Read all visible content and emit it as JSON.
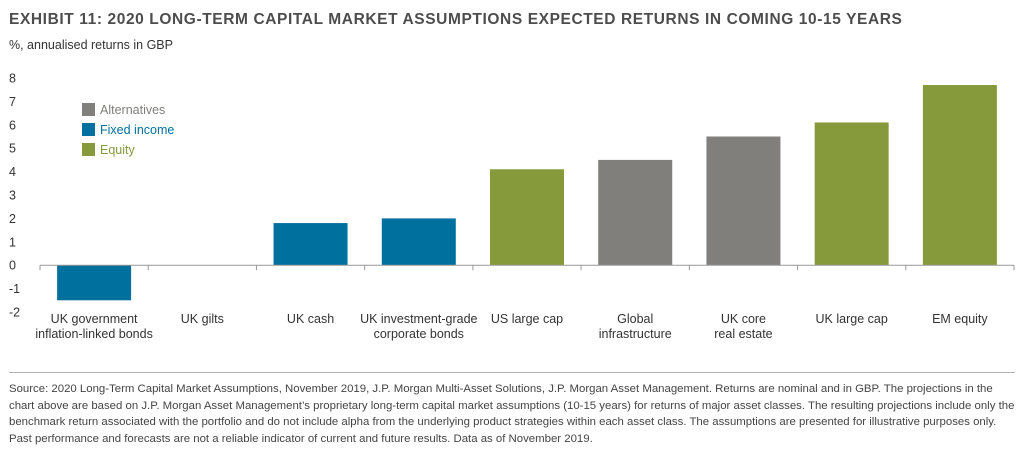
{
  "header": {
    "title": "EXHIBIT 11: 2020 LONG-TERM CAPITAL MARKET ASSUMPTIONS EXPECTED RETURNS IN COMING 10-15 YEARS",
    "subtitle": "%, annualised returns in GBP"
  },
  "colors": {
    "Alternatives": "#807f7b",
    "Fixed income": "#00709f",
    "Equity": "#869a3c",
    "axis": "#999999",
    "text": "#333333"
  },
  "chart_data": {
    "type": "bar",
    "title": "EXHIBIT 11: 2020 LONG-TERM CAPITAL MARKET ASSUMPTIONS EXPECTED RETURNS IN COMING 10-15 YEARS",
    "subtitle": "%, annualised returns in GBP",
    "xlabel": "",
    "ylabel": "",
    "ylim": [
      -2,
      8
    ],
    "yticks": [
      -2,
      -1,
      0,
      1,
      2,
      3,
      4,
      5,
      6,
      7,
      8
    ],
    "grid": false,
    "legend_position": "top-left",
    "legend": [
      "Alternatives",
      "Fixed income",
      "Equity"
    ],
    "categories": [
      [
        "UK government",
        "inflation-linked bonds"
      ],
      [
        "UK gilts"
      ],
      [
        "UK cash"
      ],
      [
        "UK investment-grade",
        "corporate bonds"
      ],
      [
        "US large cap"
      ],
      [
        "Global",
        "infrastructure"
      ],
      [
        "UK core",
        "real estate"
      ],
      [
        "UK large cap"
      ],
      [
        "EM equity"
      ]
    ],
    "values": [
      -1.5,
      0,
      1.8,
      2.0,
      4.1,
      4.5,
      5.5,
      6.1,
      7.7
    ],
    "groups": [
      "Fixed income",
      "Fixed income",
      "Fixed income",
      "Fixed income",
      "Equity",
      "Alternatives",
      "Alternatives",
      "Equity",
      "Equity"
    ]
  },
  "footer": {
    "source": "Source: 2020 Long-Term Capital Market Assumptions, November 2019, J.P. Morgan Multi-Asset Solutions, J.P. Morgan Asset Management. Returns are nominal and in GBP. The projections in the chart above are based on J.P. Morgan Asset Management’s proprietary long-term capital market assumptions (10-15 years) for returns of major asset classes. The resulting projections include only the benchmark return associated with the portfolio and do not include alpha from the underlying product strategies within each asset class. The assumptions are presented for illustrative purposes only. Past performance and forecasts are not a reliable indicator of current and future results. Data as of November 2019."
  }
}
